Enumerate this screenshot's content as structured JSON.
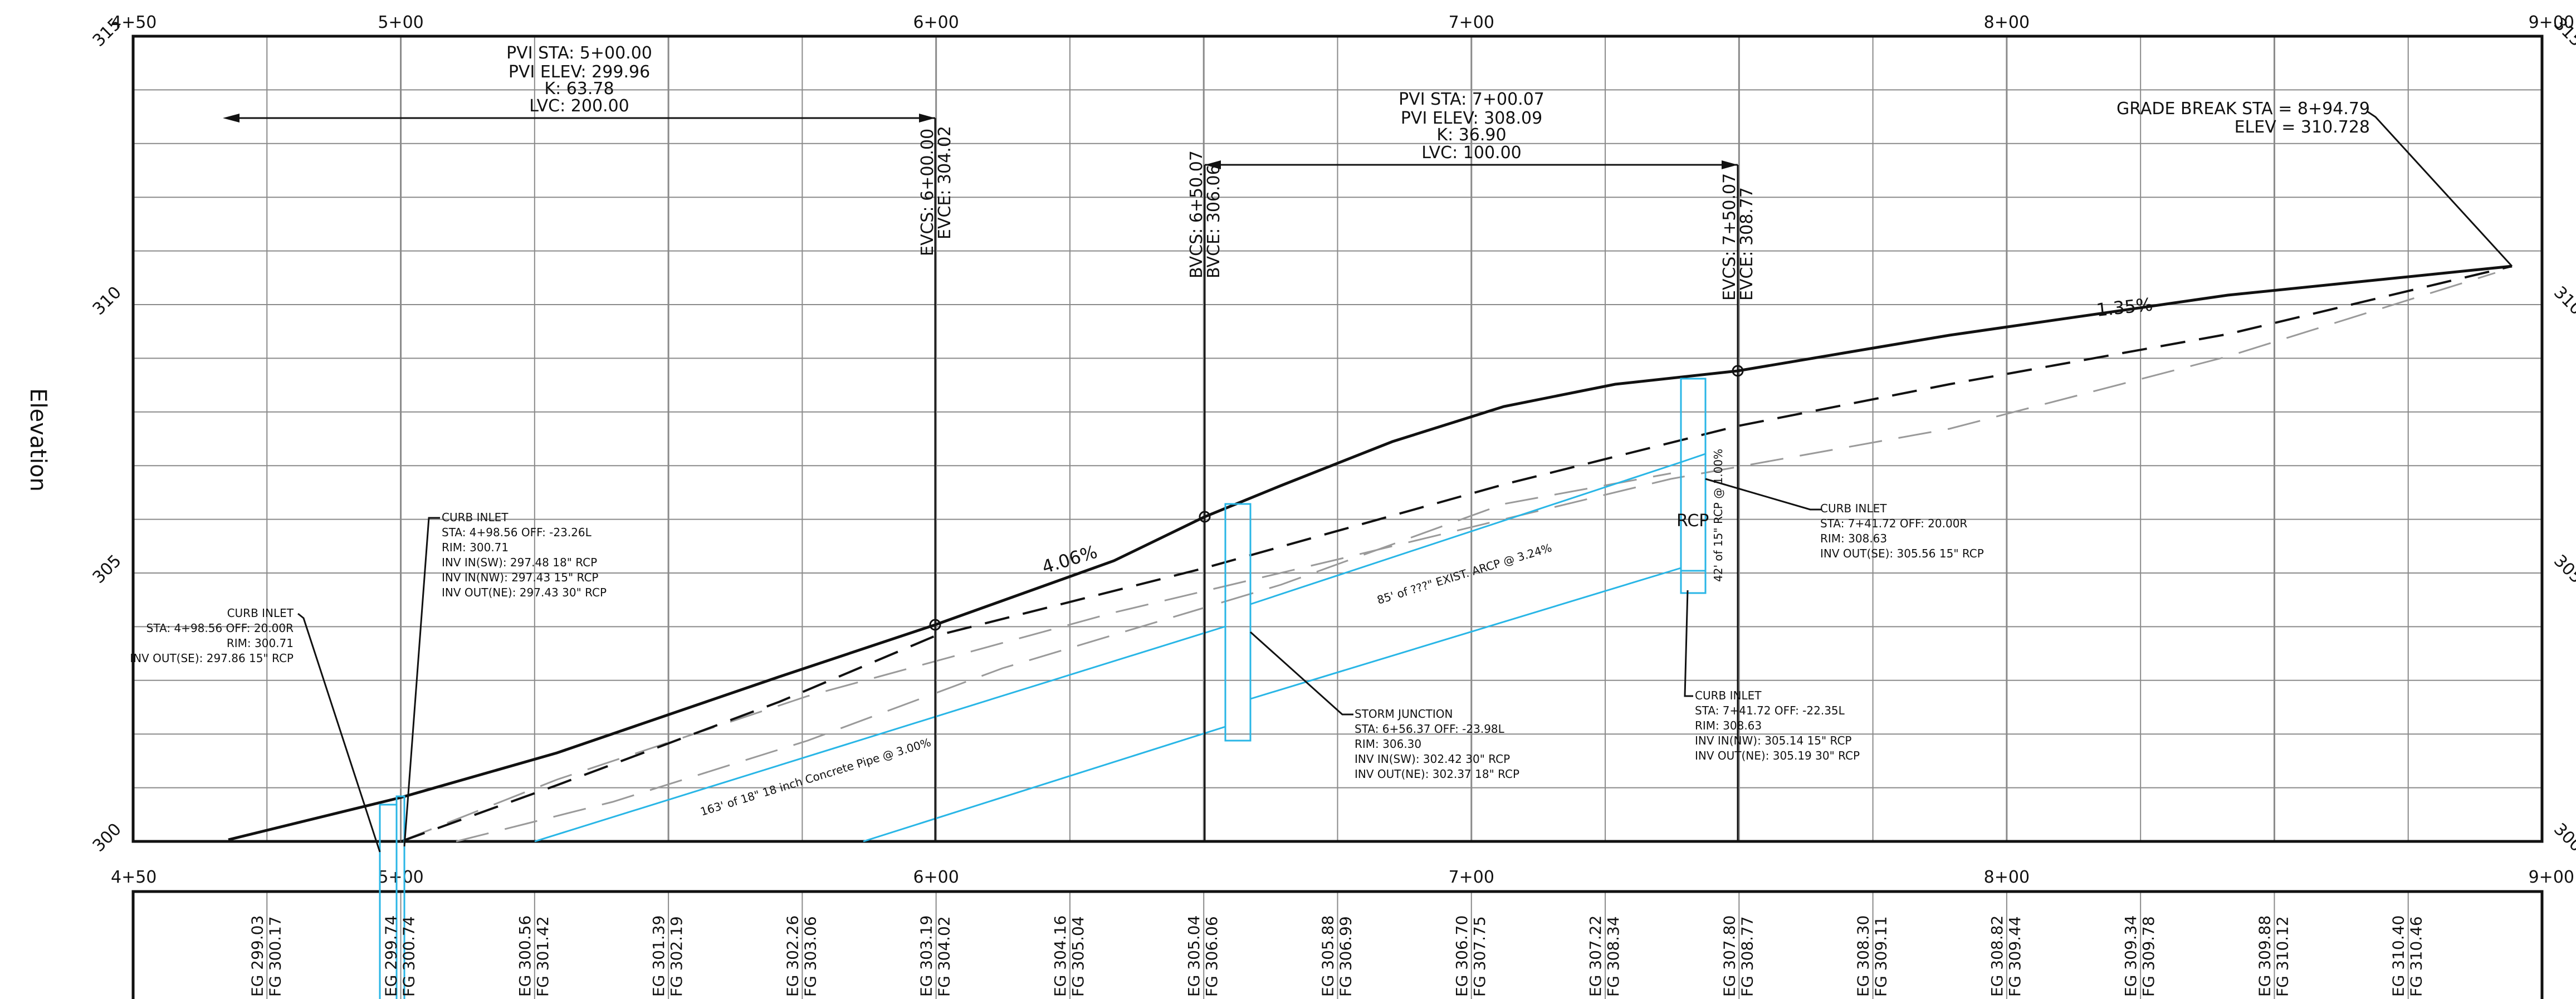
{
  "axis": {
    "y_label": "Elevation",
    "elev_min": 300,
    "elev_max": 315,
    "elev_ticks": [
      "300",
      "305",
      "310",
      "315"
    ],
    "sta_min": 450,
    "sta_max": 900,
    "station_ticks_top": [
      "4+50",
      "5+00",
      "6+00",
      "7+00",
      "8+00",
      "9+00"
    ],
    "station_ticks_bottom": [
      "4+50",
      "5+00",
      "6+00",
      "7+00",
      "8+00",
      "9+00"
    ]
  },
  "pvi1": {
    "lines": [
      "PVI STA: 5+00.00",
      "PVI ELEV: 299.96",
      "K: 63.78",
      "LVC: 200.00"
    ]
  },
  "pvi2": {
    "lines": [
      "PVI STA: 7+00.07",
      "PVI ELEV: 308.09",
      "K: 36.90",
      "LVC: 100.00"
    ]
  },
  "grade_break": {
    "lines": [
      "GRADE BREAK STA = 8+94.79",
      "ELEV =   310.728"
    ]
  },
  "vc_labels": {
    "evc1": [
      "EVCS: 6+00.00",
      "EVCE: 304.02"
    ],
    "bvc2": [
      "BVCS: 6+50.07",
      "BVCE: 306.06"
    ],
    "evc2": [
      "EVCS: 7+50.07",
      "EVCE: 308.77"
    ]
  },
  "grades": {
    "g1": "4.06%",
    "g2": "1.35%"
  },
  "pipes": {
    "p1": "163' of 18\" 18 inch Concrete Pipe @ 3.00%",
    "p2": "85' of ???\" EXIST. ARCP @ 3.24%",
    "p3": "42' of 15\" RCP @ 1.00%",
    "rcp": "RCP"
  },
  "structures": {
    "ci_left": [
      "CURB INLET",
      "STA: 4+98.56  OFF: 20.00R",
      "RIM: 300.71",
      "INV OUT(SE): 297.86 15\" RCP"
    ],
    "ci_mid": [
      "CURB INLET",
      "STA: 4+98.56  OFF: -23.26L",
      "RIM: 300.71",
      "INV IN(SW): 297.48 18\" RCP",
      "INV IN(NW): 297.43 15\" RCP",
      "INV OUT(NE): 297.43 30\" RCP"
    ],
    "sj": [
      "STORM JUNCTION",
      "STA: 6+56.37  OFF: -23.98L",
      "RIM: 306.30",
      "INV IN(SW): 302.42 30\" RCP",
      "INV OUT(NE): 302.37 18\" RCP"
    ],
    "ci_r1": [
      "CURB INLET",
      "STA: 7+41.72  OFF: 20.00R",
      "RIM: 308.63",
      "INV OUT(SE): 305.56 15\" RCP"
    ],
    "ci_r2": [
      "CURB INLET",
      "STA: 7+41.72  OFF: -22.35L",
      "RIM: 308.63",
      "INV IN(NW): 305.14 15\" RCP",
      "INV OUT(NE): 305.19 30\" RCP"
    ]
  },
  "band": [
    {
      "eg": "EG 299.03",
      "fg": "FG 300.17"
    },
    {
      "eg": "EG 299.74",
      "fg": "FG 300.74"
    },
    {
      "eg": "EG 300.56",
      "fg": "FG 301.42"
    },
    {
      "eg": "EG 301.39",
      "fg": "FG 302.19"
    },
    {
      "eg": "EG 302.26",
      "fg": "FG 303.06"
    },
    {
      "eg": "EG 303.19",
      "fg": "FG 304.02"
    },
    {
      "eg": "EG 304.16",
      "fg": "FG 305.04"
    },
    {
      "eg": "EG 305.04",
      "fg": "FG 306.06"
    },
    {
      "eg": "EG 305.88",
      "fg": "FG 306.99"
    },
    {
      "eg": "EG 306.70",
      "fg": "FG 307.75"
    },
    {
      "eg": "EG 307.22",
      "fg": "FG 308.34"
    },
    {
      "eg": "EG 307.80",
      "fg": "FG 308.77"
    },
    {
      "eg": "EG 308.30",
      "fg": "FG 309.11"
    },
    {
      "eg": "EG 308.82",
      "fg": "FG 309.44"
    },
    {
      "eg": "EG 309.34",
      "fg": "FG 309.78"
    },
    {
      "eg": "EG 309.88",
      "fg": "FG 310.12"
    },
    {
      "eg": "EG 310.40",
      "fg": "FG 310.46"
    }
  ],
  "colors": {
    "ink": "#111111",
    "grid": "#777777",
    "pipe": "#29b6e6",
    "existing": "#9a9a9a"
  }
}
